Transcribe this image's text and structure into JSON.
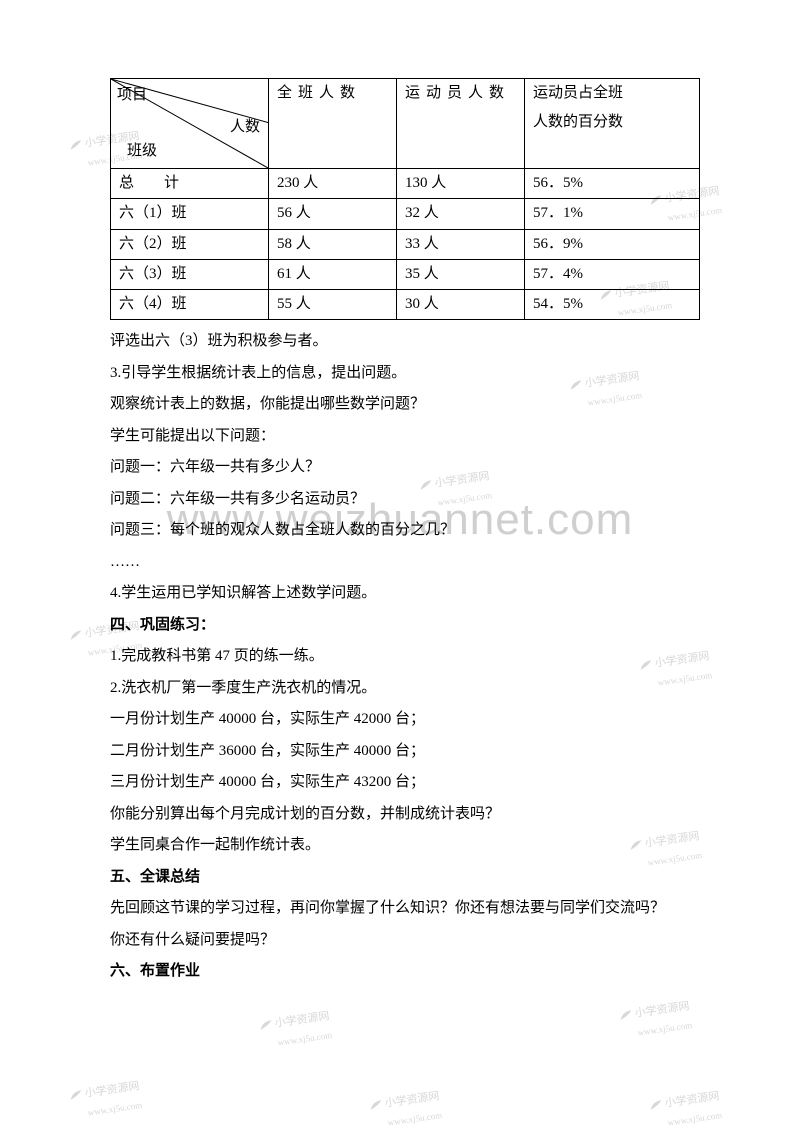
{
  "table": {
    "header": {
      "diag_top": "项目",
      "diag_right": "人数",
      "diag_bottom": "班级",
      "col2": "全班人数",
      "col3": "运动员人数",
      "col4_line1": "运动员占全班",
      "col4_line2": "人数的百分数"
    },
    "rows": [
      {
        "c1": "总　　计",
        "c2": "230 人",
        "c3": "130 人",
        "c4": "56．5%"
      },
      {
        "c1": "六（1）班",
        "c2": "56 人",
        "c3": "32 人",
        "c4": "57．1%"
      },
      {
        "c1": "六（2）班",
        "c2": "58 人",
        "c3": "33 人",
        "c4": "56．9%"
      },
      {
        "c1": "六（3）班",
        "c2": "61 人",
        "c3": "35 人",
        "c4": "57．4%"
      },
      {
        "c1": "六（4）班",
        "c2": "55 人",
        "c3": "30 人",
        "c4": "54．5%"
      }
    ]
  },
  "body": [
    {
      "t": "评选出六（3）班为积极参与者。"
    },
    {
      "t": "3.引导学生根据统计表上的信息，提出问题。"
    },
    {
      "t": "观察统计表上的数据，你能提出哪些数学问题？"
    },
    {
      "t": "学生可能提出以下问题："
    },
    {
      "t": "问题一：六年级一共有多少人？"
    },
    {
      "t": "问题二：六年级一共有多少名运动员？"
    },
    {
      "t": "问题三：每个班的观众人数占全班人数的百分之几？"
    },
    {
      "t": "……"
    },
    {
      "t": "4.学生运用已学知识解答上述数学问题。"
    },
    {
      "t": "四、巩固练习：",
      "bold": true
    },
    {
      "t": "1.完成教科书第 47 页的练一练。"
    },
    {
      "t": "2.洗衣机厂第一季度生产洗衣机的情况。"
    },
    {
      "t": "一月份计划生产 40000 台，实际生产 42000 台；"
    },
    {
      "t": "二月份计划生产 36000 台，实际生产 40000 台；"
    },
    {
      "t": "三月份计划生产 40000 台，实际生产 43200 台；"
    },
    {
      "t": "你能分别算出每个月完成计划的百分数，并制成统计表吗？"
    },
    {
      "t": "学生同桌合作一起制作统计表。"
    },
    {
      "t": "五、全课总结",
      "bold": true
    },
    {
      "t": "先回顾这节课的学习过程，再问你掌握了什么知识？你还有想法要与同学们交流吗？"
    },
    {
      "t": "你还有什么疑问要提吗？"
    },
    {
      "t": "六、布置作业",
      "bold": true
    }
  ],
  "watermarks": {
    "big": "www.weizhuannet.com",
    "small_label": "小学资源网",
    "small_url": "www.xj5u.com"
  }
}
